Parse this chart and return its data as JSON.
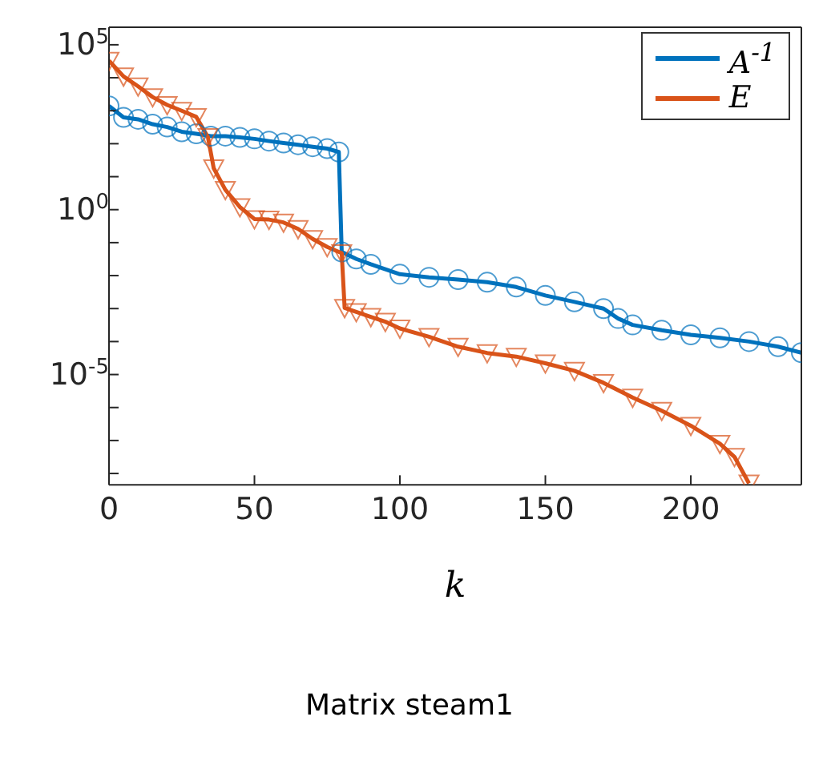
{
  "chart_data": {
    "type": "line",
    "title": "Matrix steam1",
    "xlabel": "k",
    "log": "y",
    "legend": "top right",
    "xlim": [
      0,
      238
    ],
    "xticks": [
      0,
      50,
      100,
      150,
      200
    ],
    "ylim": [
      4.5e-09,
      340000.0
    ],
    "yticks": [
      {
        "value": 1e-08,
        "label": null
      },
      {
        "value": 1e-07,
        "label": null
      },
      {
        "value": 1e-06,
        "label": null
      },
      {
        "value": 1e-05,
        "label": "10$^{-5}$"
      },
      {
        "value": 0.0001,
        "label": null
      },
      {
        "value": 0.001,
        "label": null
      },
      {
        "value": 0.01,
        "label": null
      },
      {
        "value": 0.1,
        "label": null
      },
      {
        "value": 1,
        "label": "10$^{0}$"
      },
      {
        "value": 10,
        "label": null
      },
      {
        "value": 100,
        "label": null
      },
      {
        "value": 1000,
        "label": null
      },
      {
        "value": 10000,
        "label": null
      },
      {
        "value": 100000,
        "label": "10$^{5}$"
      }
    ],
    "series": [
      {
        "name": "A$^{-1}$",
        "color": "#0072bd",
        "marker": "circle",
        "x": [
          0,
          5,
          10,
          15,
          20,
          25,
          30,
          35,
          40,
          45,
          50,
          55,
          60,
          65,
          70,
          75,
          79,
          80,
          85,
          90,
          100,
          110,
          120,
          130,
          140,
          150,
          160,
          170,
          175,
          180,
          190,
          200,
          210,
          220,
          230,
          238
        ],
        "values": [
          1400,
          630,
          550,
          390,
          320,
          230,
          200,
          170,
          170,
          155,
          140,
          120,
          105,
          93,
          81,
          71,
          56,
          0.052,
          0.032,
          0.022,
          0.011,
          0.0089,
          0.0076,
          0.0063,
          0.0045,
          0.0025,
          0.0016,
          0.001,
          0.0005,
          0.00032,
          0.00022,
          0.00016,
          0.00013,
          0.0001,
          7e-05,
          4.6e-05
        ]
      },
      {
        "name": "E",
        "color": "#d95319",
        "marker": "triangle",
        "x": [
          0,
          5,
          10,
          15,
          20,
          25,
          30,
          34,
          36,
          40,
          45,
          50,
          55,
          60,
          65,
          70,
          75,
          80,
          81,
          85,
          90,
          95,
          100,
          110,
          120,
          130,
          140,
          150,
          160,
          170,
          180,
          190,
          200,
          210,
          215,
          220
        ],
        "values": [
          33000,
          11000,
          5500,
          2600,
          1500,
          1000,
          650,
          160,
          18,
          4,
          1.2,
          0.52,
          0.5,
          0.41,
          0.26,
          0.13,
          0.074,
          0.048,
          0.00105,
          0.00079,
          0.00056,
          0.0004,
          0.00025,
          0.00014,
          7e-05,
          4.5e-05,
          3.5e-05,
          2.2e-05,
          1.3e-05,
          5.6e-06,
          2e-06,
          8e-07,
          2.8e-07,
          8e-08,
          3.2e-08,
          5e-09
        ]
      }
    ]
  }
}
